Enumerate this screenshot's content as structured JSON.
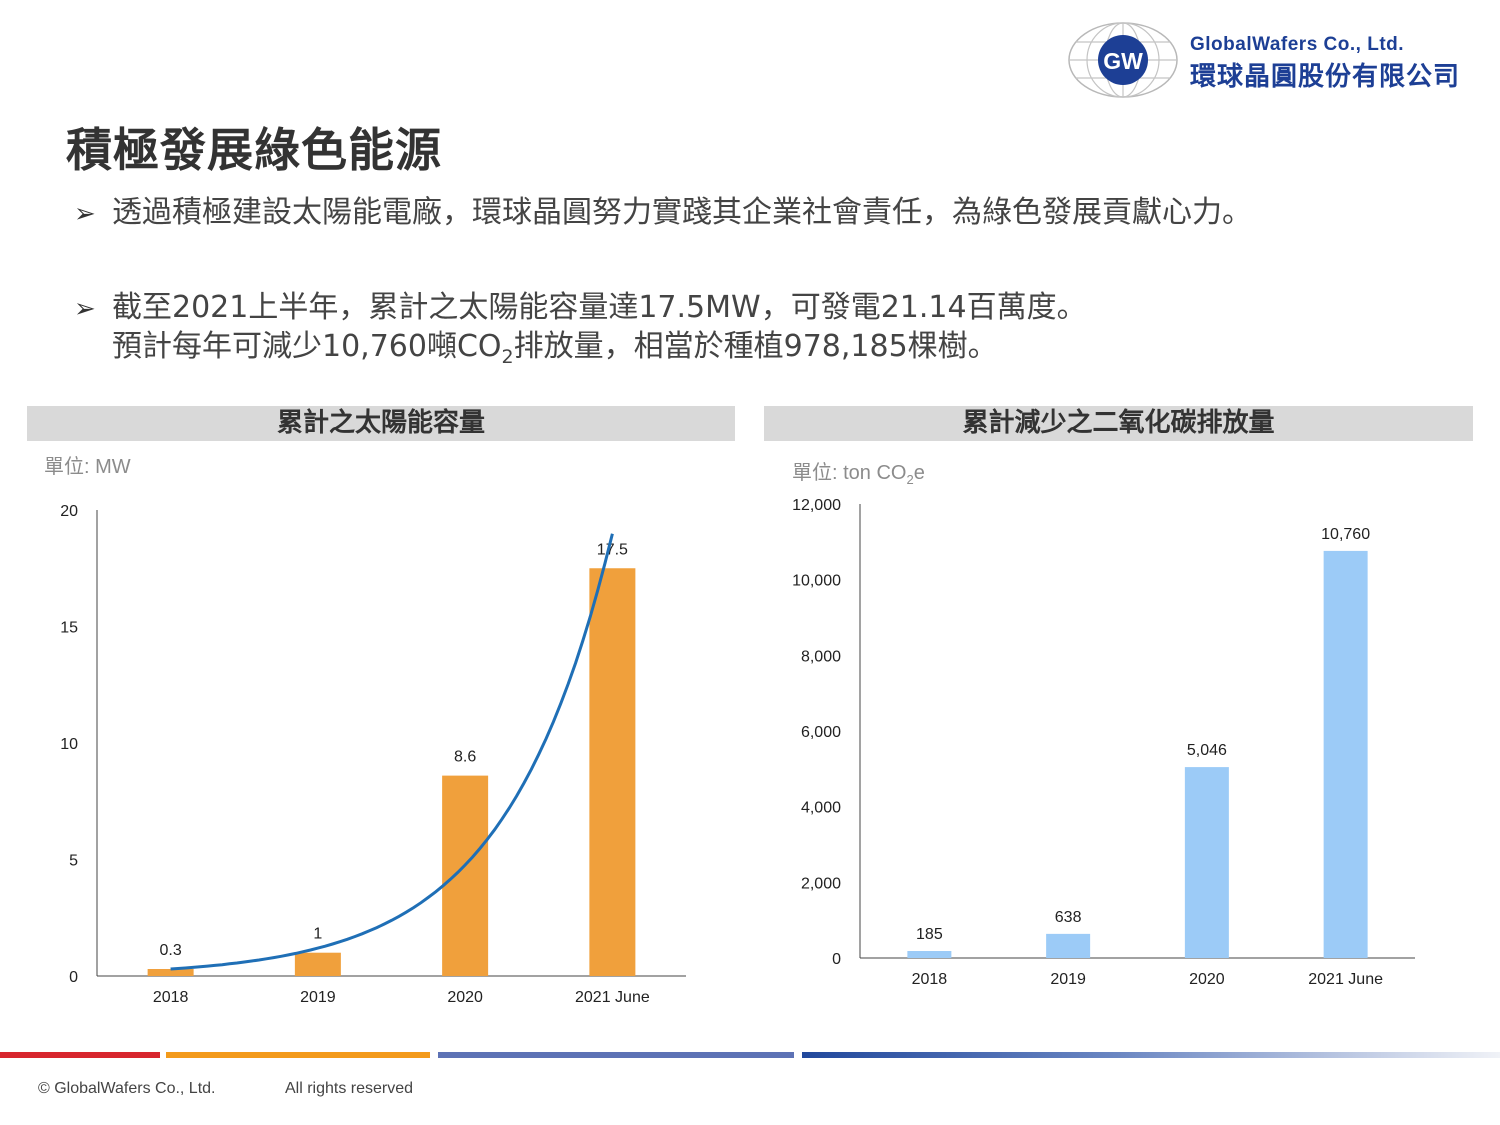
{
  "logo": {
    "badge": "GW",
    "name_en": "GlobalWafers Co., Ltd.",
    "name_zh": "環球晶圓股份有限公司"
  },
  "title": "積極發展綠色能源",
  "bullets": [
    {
      "lines": [
        "透過積極建設太陽能電廠，環球晶圓努力實踐其企業社會責任，為綠色發展貢獻心力。"
      ]
    },
    {
      "line1": "截至2021上半年，累計之太陽能容量達17.5MW，可發電21.14百萬度。",
      "line2_pre": "預計每年可減少10,760噸CO",
      "line2_sub": "2",
      "line2_post": "排放量，相當於種植978,185棵樹。"
    }
  ],
  "chart_data": [
    {
      "type": "bar",
      "title": "累計之太陽能容量",
      "unit_label": "單位: MW",
      "categories": [
        "2018",
        "2019",
        "2020",
        "2021 June"
      ],
      "values": [
        0.3,
        1,
        8.6,
        17.5
      ],
      "value_labels": [
        "0.3",
        "1",
        "8.6",
        "17.5"
      ],
      "ylim": [
        0,
        20
      ],
      "yticks": [
        "0",
        "5",
        "10",
        "15",
        "20"
      ],
      "ytick_values": [
        0,
        5,
        10,
        15,
        20
      ],
      "bar_color": "#f0a03c",
      "trend_line_color": "#1f6fb6",
      "trend": "exponential"
    },
    {
      "type": "bar",
      "title": "累計減少之二氧化碳排放量",
      "unit_label_pre": "單位: ton CO",
      "unit_label_sub": "2",
      "unit_label_post": "e",
      "categories": [
        "2018",
        "2019",
        "2020",
        "2021 June"
      ],
      "values": [
        185,
        638,
        5046,
        10760
      ],
      "value_labels": [
        "185",
        "638",
        "5,046",
        "10,760"
      ],
      "ylim": [
        0,
        12000
      ],
      "yticks": [
        "0",
        "2,000",
        "4,000",
        "6,000",
        "8,000",
        "10,000",
        "12,000"
      ],
      "ytick_values": [
        0,
        2000,
        4000,
        6000,
        8000,
        10000,
        12000
      ],
      "bar_color": "#9ccbf7"
    }
  ],
  "footer": {
    "copyright": "© GlobalWafers Co., Ltd.",
    "rights": "All rights reserved"
  },
  "colors": {
    "brand_blue": "#1d3f95",
    "footer_red": "#d7262e",
    "footer_orange": "#f39a1b",
    "footer_blue": "#5d72b5",
    "footer_navy": "#21489c"
  }
}
